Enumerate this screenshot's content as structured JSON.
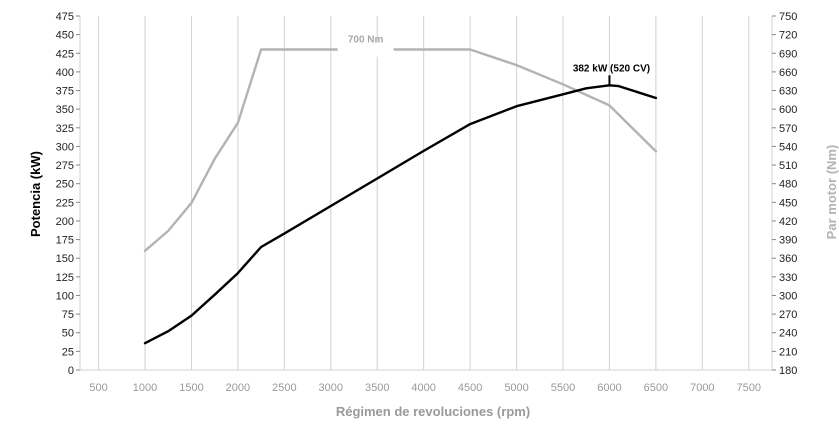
{
  "chart_data": {
    "type": "line",
    "xlabel": "Régimen de revoluciones (rpm)",
    "ylabel_left": "Potencia (kW)",
    "ylabel_right": "Par motor (Nm)",
    "x_ticks": [
      500,
      1000,
      1500,
      2000,
      2500,
      3000,
      3500,
      4000,
      4500,
      5000,
      5500,
      6000,
      6500,
      7000,
      7500
    ],
    "y_left_ticks": [
      0,
      25,
      50,
      75,
      100,
      125,
      150,
      175,
      200,
      225,
      250,
      275,
      300,
      325,
      350,
      375,
      400,
      425,
      450,
      475
    ],
    "y_right_ticks": [
      180,
      210,
      240,
      270,
      300,
      330,
      360,
      390,
      420,
      450,
      480,
      510,
      540,
      570,
      600,
      630,
      660,
      690,
      720,
      750
    ],
    "xlim": [
      300,
      7750
    ],
    "ylim_left": [
      0,
      475
    ],
    "ylim_right": [
      180,
      750
    ],
    "grid": "vertical",
    "colors": {
      "power": "#000000",
      "torque": "#b3b3b3",
      "axis_text_x": "#9a9a9a",
      "axis_title_right": "#b3b3b3"
    },
    "series": [
      {
        "name": "Potencia",
        "axis": "left",
        "x": [
          1000,
          1250,
          1500,
          1750,
          2000,
          2250,
          2500,
          3000,
          3500,
          4000,
          4500,
          5000,
          5500,
          5750,
          6000,
          6100,
          6500
        ],
        "values": [
          36,
          52,
          73,
          101,
          130,
          165,
          183,
          220,
          257,
          294,
          330,
          354,
          370,
          378,
          382,
          381,
          365
        ]
      },
      {
        "name": "Par motor",
        "axis": "right",
        "x": [
          1000,
          1250,
          1500,
          1750,
          2000,
          2250,
          4500,
          5000,
          5500,
          6000,
          6500
        ],
        "values": [
          372,
          404,
          449,
          520,
          578,
          696,
          696,
          671,
          640,
          606,
          532
        ]
      }
    ],
    "annotations": [
      {
        "text": "700 Nm",
        "series": "Par motor"
      },
      {
        "text": "382 kW (520 CV)",
        "series": "Potencia",
        "x": 6000,
        "y": 382
      }
    ]
  }
}
